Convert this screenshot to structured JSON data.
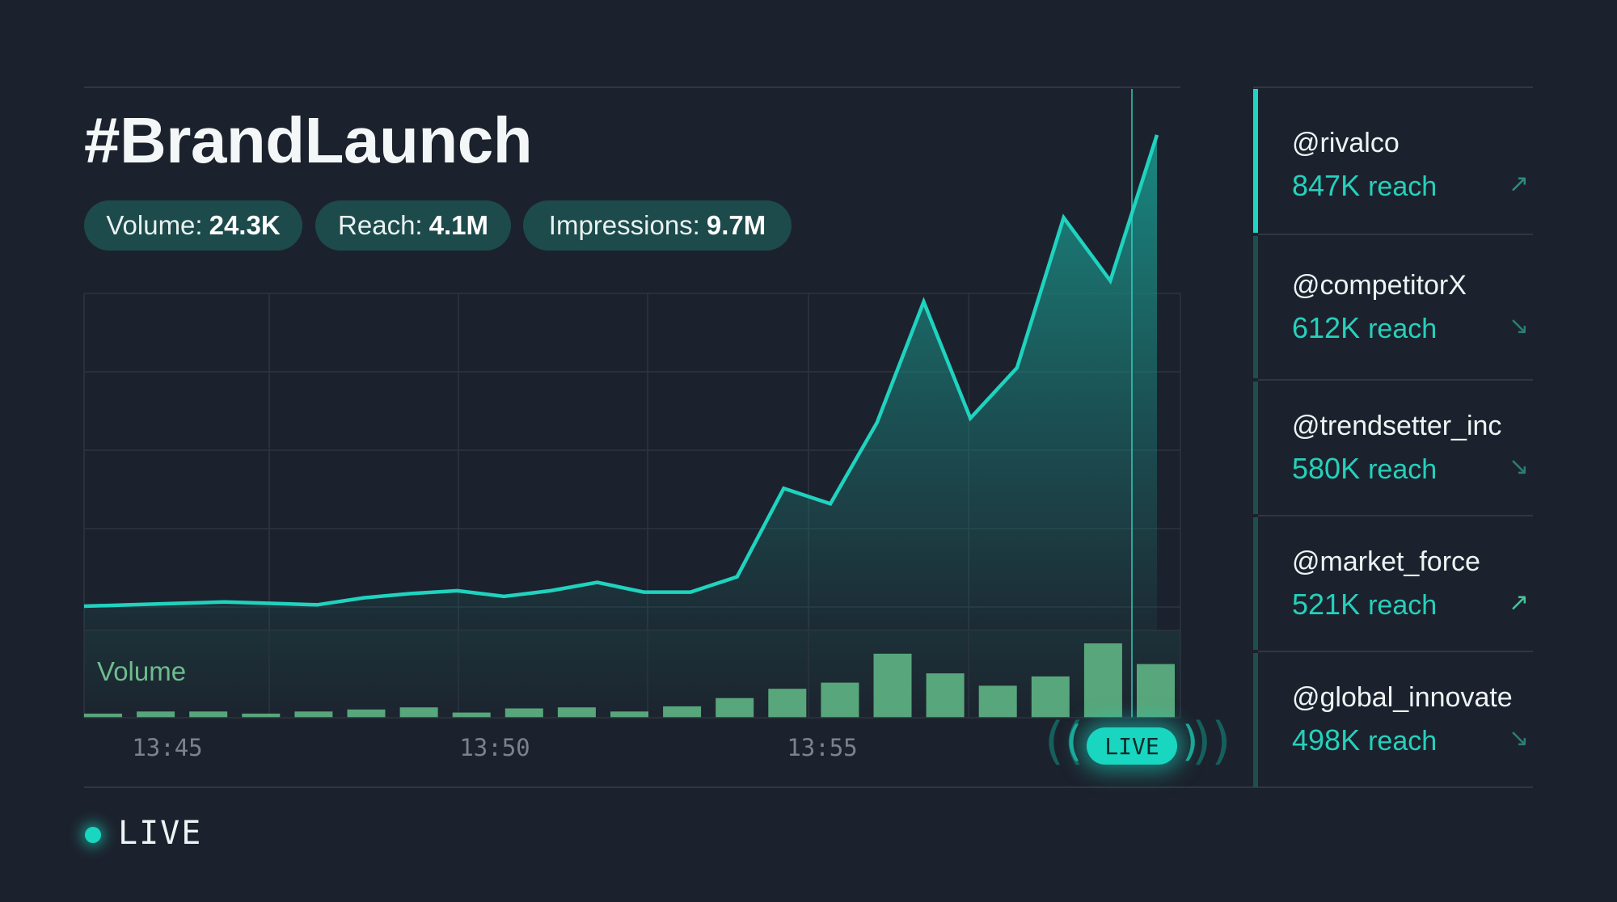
{
  "header": {
    "title": "#BrandLaunch",
    "metrics": [
      {
        "label": "Volume:",
        "value": "24.3K"
      },
      {
        "label": "Reach:",
        "value": "4.1M"
      },
      {
        "label": "Impressions:",
        "value": "9.7M"
      }
    ]
  },
  "chart_data": {
    "type": "area",
    "x_tick_labels": [
      "13:45",
      "13:50",
      "13:55"
    ],
    "series": [
      {
        "values": [
          6.5,
          6.6,
          6.7,
          6.8,
          6.7,
          6.6,
          7.1,
          7.4,
          7.6,
          7.2,
          7.6,
          8.2,
          7.5,
          7.5,
          8.6,
          14.9,
          13.8,
          19.6,
          28.2,
          19.9,
          23.5,
          34.2,
          29.7,
          40.1
        ]
      }
    ],
    "volume_bars": {
      "label": "Volume",
      "values": [
        4,
        6,
        6,
        4,
        6,
        8,
        10,
        5,
        9,
        10,
        6,
        11,
        19,
        28,
        34,
        62,
        43,
        31,
        40,
        72,
        52
      ]
    },
    "colors": {
      "line": "#1fd3bf",
      "fill": "#1a8c84",
      "bars": "#5fb584"
    }
  },
  "live": {
    "badge": "LIVE",
    "status": "LIVE"
  },
  "accounts": [
    {
      "handle": "@rivalco",
      "reach_value": "847K",
      "reach_unit": "reach",
      "trend": "up",
      "trend_icon": "↗",
      "active": true
    },
    {
      "handle": "@competitorX",
      "reach_value": "612K",
      "reach_unit": "reach",
      "trend": "down",
      "trend_icon": "↘",
      "active": false
    },
    {
      "handle": "@trendsetter_inc",
      "reach_value": "580K",
      "reach_unit": "reach",
      "trend": "down",
      "trend_icon": "↘",
      "active": false
    },
    {
      "handle": "@market_force",
      "reach_value": "521K",
      "reach_unit": "reach",
      "trend": "up",
      "trend_icon": "↗",
      "active": false
    },
    {
      "handle": "@global_innovate",
      "reach_value": "498K",
      "reach_unit": "reach",
      "trend": "down",
      "trend_icon": "↘",
      "active": false
    }
  ]
}
